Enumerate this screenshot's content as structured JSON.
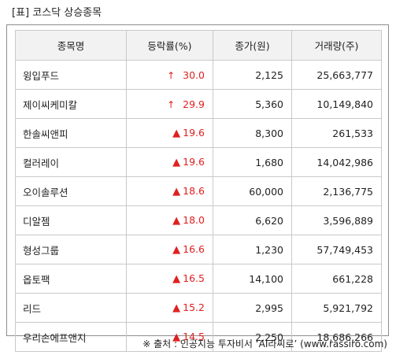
{
  "title": "[표] 코스닥 상승종목",
  "table": {
    "headers": [
      "종목명",
      "등락률(%)",
      "종가(원)",
      "거래량(주)"
    ],
    "rows": [
      {
        "name": "윙입푸드",
        "arrow_icon": "up-arrow-icon",
        "rate": "30.0",
        "close": "2,125",
        "volume": "25,663,777"
      },
      {
        "name": "제이씨케미칼",
        "arrow_icon": "up-arrow-icon",
        "rate": "29.9",
        "close": "5,360",
        "volume": "10,149,840"
      },
      {
        "name": "한솔씨앤피",
        "arrow_icon": "triangle-up-icon",
        "rate": "19.6",
        "close": "8,300",
        "volume": "261,533"
      },
      {
        "name": "컬러레이",
        "arrow_icon": "triangle-up-icon",
        "rate": "19.6",
        "close": "1,680",
        "volume": "14,042,986"
      },
      {
        "name": "오이솔루션",
        "arrow_icon": "triangle-up-icon",
        "rate": "18.6",
        "close": "60,000",
        "volume": "2,136,775"
      },
      {
        "name": "디알젬",
        "arrow_icon": "triangle-up-icon",
        "rate": "18.0",
        "close": "6,620",
        "volume": "3,596,889"
      },
      {
        "name": "형성그룹",
        "arrow_icon": "triangle-up-icon",
        "rate": "16.6",
        "close": "1,230",
        "volume": "57,749,453"
      },
      {
        "name": "옵토팩",
        "arrow_icon": "triangle-up-icon",
        "rate": "16.5",
        "close": "14,100",
        "volume": "661,228"
      },
      {
        "name": "리드",
        "arrow_icon": "triangle-up-icon",
        "rate": "15.2",
        "close": "2,995",
        "volume": "5,921,792"
      },
      {
        "name": "우리손에프앤지",
        "arrow_icon": "triangle-up-icon",
        "rate": "14.5",
        "close": "2,250",
        "volume": "18,686,266"
      }
    ]
  },
  "source": "※ 출처 : 인공지능 투자비서 ‘AI라씨로’ (www.rassiro.com)",
  "colors": {
    "rise": "#e02020",
    "header_bg": "#f2f2f2",
    "border": "#c9c9c9"
  }
}
